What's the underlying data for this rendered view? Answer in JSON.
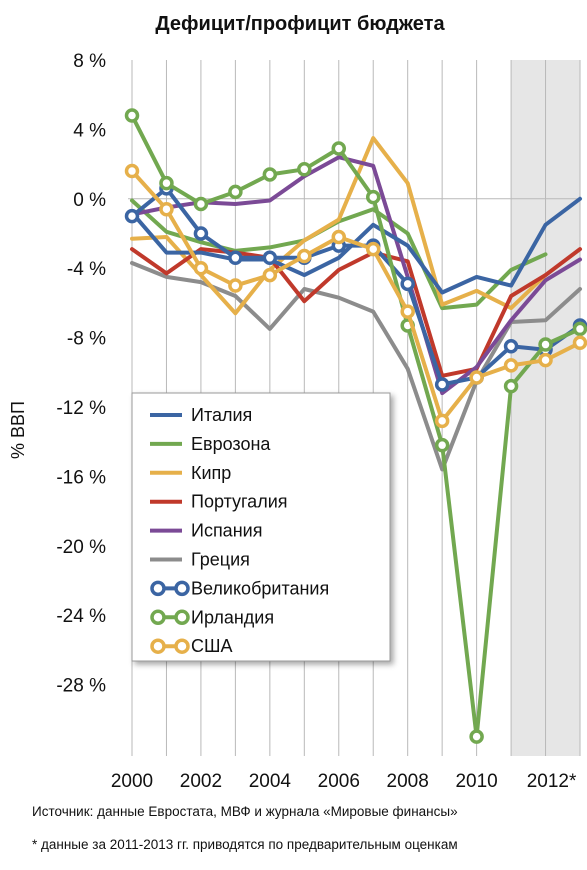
{
  "chart_data": {
    "type": "line",
    "title": "Дефицит/профицит бюджета",
    "ylabel": "% ВВП",
    "xlabel": "",
    "ylim": [
      -31,
      8
    ],
    "xlim": [
      2000,
      2013
    ],
    "y_ticks": [
      {
        "value": 8,
        "label": "8 %"
      },
      {
        "value": 4,
        "label": "4 %"
      },
      {
        "value": 0,
        "label": "0 %"
      },
      {
        "value": -4,
        "label": "-4 %"
      },
      {
        "value": -8,
        "label": "-8 %"
      },
      {
        "value": -12,
        "label": "-12 %"
      },
      {
        "value": -16,
        "label": "-16 %"
      },
      {
        "value": -20,
        "label": "-20 %"
      },
      {
        "value": -24,
        "label": "-24 %"
      },
      {
        "value": -28,
        "label": "-28 %"
      }
    ],
    "x_ticks": [
      {
        "value": 2000,
        "label": "2000"
      },
      {
        "value": 2002,
        "label": "2002"
      },
      {
        "value": 2004,
        "label": "2004"
      },
      {
        "value": 2006,
        "label": "2006"
      },
      {
        "value": 2008,
        "label": "2008"
      },
      {
        "value": 2010,
        "label": "2010"
      },
      {
        "value": 2012,
        "label": "2012*"
      }
    ],
    "x_grid_years": [
      2000,
      2001,
      2002,
      2003,
      2004,
      2005,
      2006,
      2007,
      2008,
      2009,
      2010,
      2011,
      2012,
      2013
    ],
    "estimate_region": [
      2011,
      2013
    ],
    "grid": true,
    "legend_position": "lower-left inside plot",
    "series": [
      {
        "name": "Италия",
        "color": "#3b65a3",
        "marker": false,
        "x": [
          2000,
          2001,
          2002,
          2003,
          2004,
          2005,
          2006,
          2007,
          2008,
          2009,
          2010,
          2011,
          2012,
          2013
        ],
        "y": [
          -0.8,
          -3.1,
          -3.1,
          -3.5,
          -3.5,
          -4.4,
          -3.4,
          -1.5,
          -2.7,
          -5.4,
          -4.5,
          -5.0,
          -1.5,
          0.0
        ]
      },
      {
        "name": "Еврозона",
        "color": "#72a850",
        "marker": false,
        "x": [
          2000,
          2001,
          2002,
          2003,
          2004,
          2005,
          2006,
          2007,
          2008,
          2009,
          2010,
          2011,
          2012
        ],
        "y": [
          -0.1,
          -1.9,
          -2.5,
          -3.0,
          -2.8,
          -2.4,
          -1.3,
          -0.6,
          -2.0,
          -6.3,
          -6.1,
          -4.1,
          -3.2
        ]
      },
      {
        "name": "Кипр",
        "color": "#e6b04a",
        "marker": false,
        "x": [
          2000,
          2001,
          2002,
          2003,
          2004,
          2005,
          2006,
          2007,
          2008,
          2009,
          2010,
          2011,
          2012
        ],
        "y": [
          -2.3,
          -2.2,
          -4.4,
          -6.6,
          -4.1,
          -2.4,
          -1.2,
          3.5,
          0.9,
          -6.1,
          -5.3,
          -6.3,
          -4.4
        ]
      },
      {
        "name": "Португалия",
        "color": "#c0392b",
        "marker": false,
        "x": [
          2000,
          2001,
          2002,
          2003,
          2004,
          2005,
          2006,
          2007,
          2008,
          2009,
          2010,
          2011,
          2012,
          2013
        ],
        "y": [
          -2.9,
          -4.3,
          -2.9,
          -3.1,
          -3.4,
          -5.9,
          -4.1,
          -3.1,
          -3.6,
          -10.2,
          -9.8,
          -5.6,
          -4.4,
          -2.9
        ]
      },
      {
        "name": "Испания",
        "color": "#7b4a96",
        "marker": false,
        "x": [
          2000,
          2001,
          2002,
          2003,
          2004,
          2005,
          2006,
          2007,
          2008,
          2009,
          2010,
          2011,
          2012,
          2013
        ],
        "y": [
          -0.9,
          -0.5,
          -0.2,
          -0.3,
          -0.1,
          1.3,
          2.4,
          1.9,
          -4.5,
          -11.2,
          -9.7,
          -7.0,
          -4.7,
          -3.5
        ]
      },
      {
        "name": "Греция",
        "color": "#8c8c8c",
        "marker": false,
        "x": [
          2000,
          2001,
          2002,
          2003,
          2004,
          2005,
          2006,
          2007,
          2008,
          2009,
          2010,
          2011,
          2012,
          2013
        ],
        "y": [
          -3.7,
          -4.5,
          -4.8,
          -5.6,
          -7.5,
          -5.2,
          -5.7,
          -6.5,
          -9.8,
          -15.6,
          -10.5,
          -7.1,
          -7.0,
          -5.2
        ]
      },
      {
        "name": "Великобритания",
        "color": "#3b65a3",
        "marker": true,
        "x": [
          2000,
          2001,
          2002,
          2003,
          2004,
          2005,
          2006,
          2007,
          2008,
          2009,
          2010,
          2011,
          2012,
          2013
        ],
        "y": [
          -1.0,
          0.6,
          -2.0,
          -3.4,
          -3.4,
          -3.4,
          -2.7,
          -2.7,
          -4.9,
          -10.7,
          -10.3,
          -8.5,
          -8.7,
          -7.3
        ]
      },
      {
        "name": "Ирландия",
        "color": "#72a850",
        "marker": true,
        "x": [
          2000,
          2001,
          2002,
          2003,
          2004,
          2005,
          2006,
          2007,
          2008,
          2009,
          2010,
          2011,
          2012,
          2013
        ],
        "y": [
          4.8,
          0.9,
          -0.3,
          0.4,
          1.4,
          1.7,
          2.9,
          0.1,
          -7.3,
          -14.2,
          -31.0,
          -10.8,
          -8.4,
          -7.5
        ]
      },
      {
        "name": "США",
        "color": "#e6b04a",
        "marker": true,
        "x": [
          2000,
          2001,
          2002,
          2003,
          2004,
          2005,
          2006,
          2007,
          2008,
          2009,
          2010,
          2011,
          2012,
          2013
        ],
        "y": [
          1.6,
          -0.6,
          -4.0,
          -5.0,
          -4.4,
          -3.3,
          -2.2,
          -2.9,
          -6.5,
          -12.8,
          -10.3,
          -9.6,
          -9.3,
          -8.3
        ]
      }
    ]
  },
  "footnotes": {
    "source": "Источник: данные Евростата, МВФ и журнала «Мировые финансы»",
    "estimate": "* данные за 2011-2013 гг. приводятся по предварительным оценкам"
  }
}
